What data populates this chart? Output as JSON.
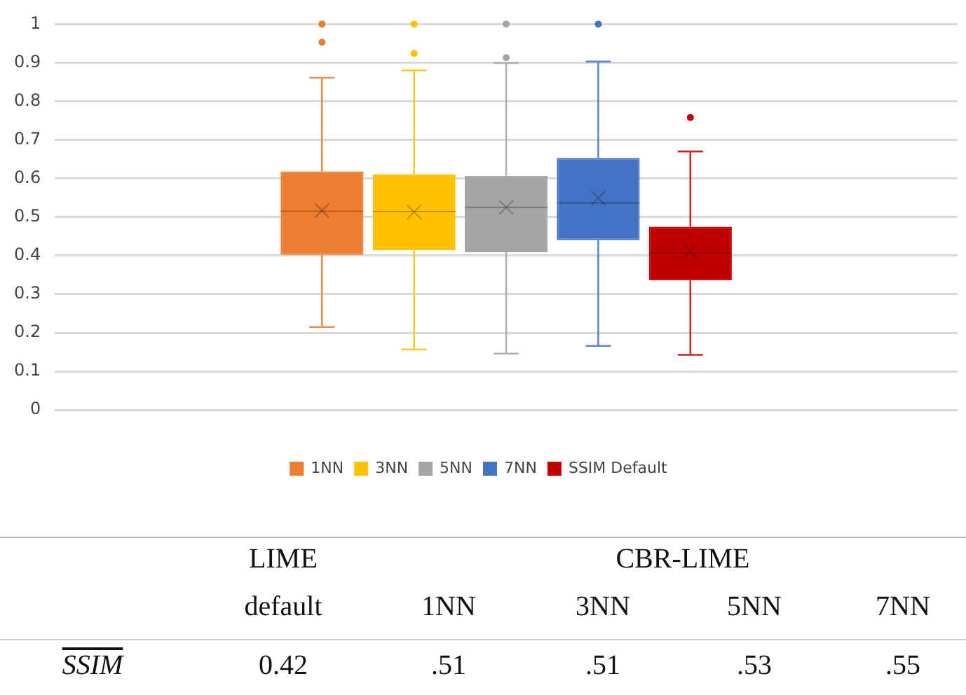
{
  "chart_data": {
    "type": "box",
    "categories": [
      null
    ],
    "series": [
      {
        "name": "1NN",
        "color": "#ed7d31",
        "boxes": [
          {
            "low": 0.215,
            "q1": 0.402,
            "median": 0.515,
            "q3": 0.618,
            "high": 0.861,
            "mean": 0.517,
            "outliers": [
              0.953,
              1.0
            ]
          }
        ]
      },
      {
        "name": "3NN",
        "color": "#ffc000",
        "boxes": [
          {
            "low": 0.157,
            "q1": 0.414,
            "median": 0.514,
            "q3": 0.611,
            "high": 0.88,
            "mean": 0.513,
            "outliers": [
              0.924,
              1.0
            ]
          }
        ]
      },
      {
        "name": "5NN",
        "color": "#a5a5a5",
        "boxes": [
          {
            "low": 0.146,
            "q1": 0.409,
            "median": 0.525,
            "q3": 0.607,
            "high": 0.899,
            "mean": 0.525,
            "outliers": [
              0.913,
              1.0
            ]
          }
        ]
      },
      {
        "name": "7NN",
        "color": "#4472c4",
        "boxes": [
          {
            "low": 0.166,
            "q1": 0.44,
            "median": 0.537,
            "q3": 0.653,
            "high": 0.903,
            "mean": 0.549,
            "outliers": [
              1.0
            ]
          }
        ]
      },
      {
        "name": "SSIM Default",
        "color": "#c00000",
        "boxes": [
          {
            "low": 0.143,
            "q1": 0.336,
            "median": 0.407,
            "q3": 0.475,
            "high": 0.67,
            "mean": 0.411,
            "outliers": [
              0.758
            ]
          }
        ]
      }
    ],
    "ylim": [
      0,
      1
    ],
    "yticks": [
      0,
      0.1,
      0.2,
      0.3,
      0.4,
      0.5,
      0.6,
      0.7,
      0.8,
      0.9,
      1
    ],
    "grid": "y",
    "legend": "bottom",
    "annotations": [
      "LIME",
      "CBR-LIME",
      "default",
      "1NN",
      "3NN",
      "5NN",
      "7NN",
      "SSIM",
      "0.42",
      ".51",
      ".51",
      ".53",
      ".55"
    ]
  }
}
